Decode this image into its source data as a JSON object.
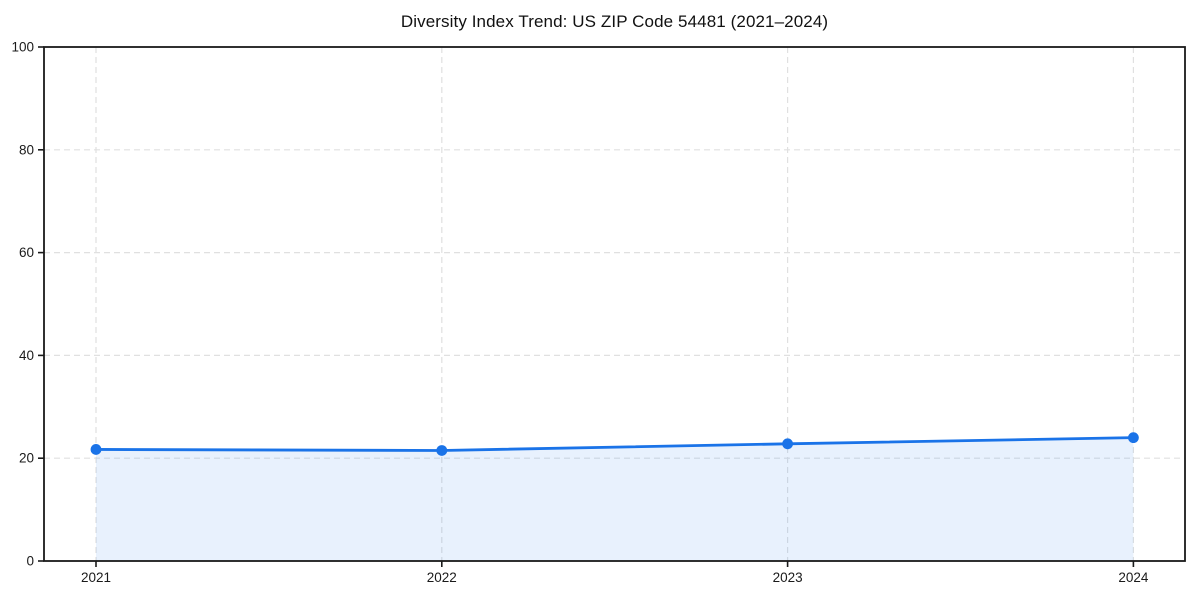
{
  "figure": {
    "background": "#ffffff"
  },
  "chart_data": {
    "type": "area",
    "title": "Diversity Index Trend: US ZIP Code 54481 (2021–2024)",
    "categories": [
      "2021",
      "2022",
      "2023",
      "2024"
    ],
    "series": [
      {
        "name": "Diversity Index",
        "values": [
          21.7,
          21.5,
          22.8,
          24.0
        ]
      }
    ],
    "xlabel": "",
    "ylabel": "",
    "ylim": [
      0,
      100
    ],
    "yticks": [
      0,
      20,
      40,
      60,
      80,
      100
    ],
    "grid": "dashed-both-axes",
    "legend": "none",
    "colors": {
      "line": "#1a73e8",
      "marker": "#1a73e8",
      "area_fill": "rgba(26,115,232,0.10)",
      "gridline": "#e0e0e0",
      "axis": "#1a1a1a",
      "tick_label": "#1a1a1a",
      "title": "#111111"
    }
  }
}
